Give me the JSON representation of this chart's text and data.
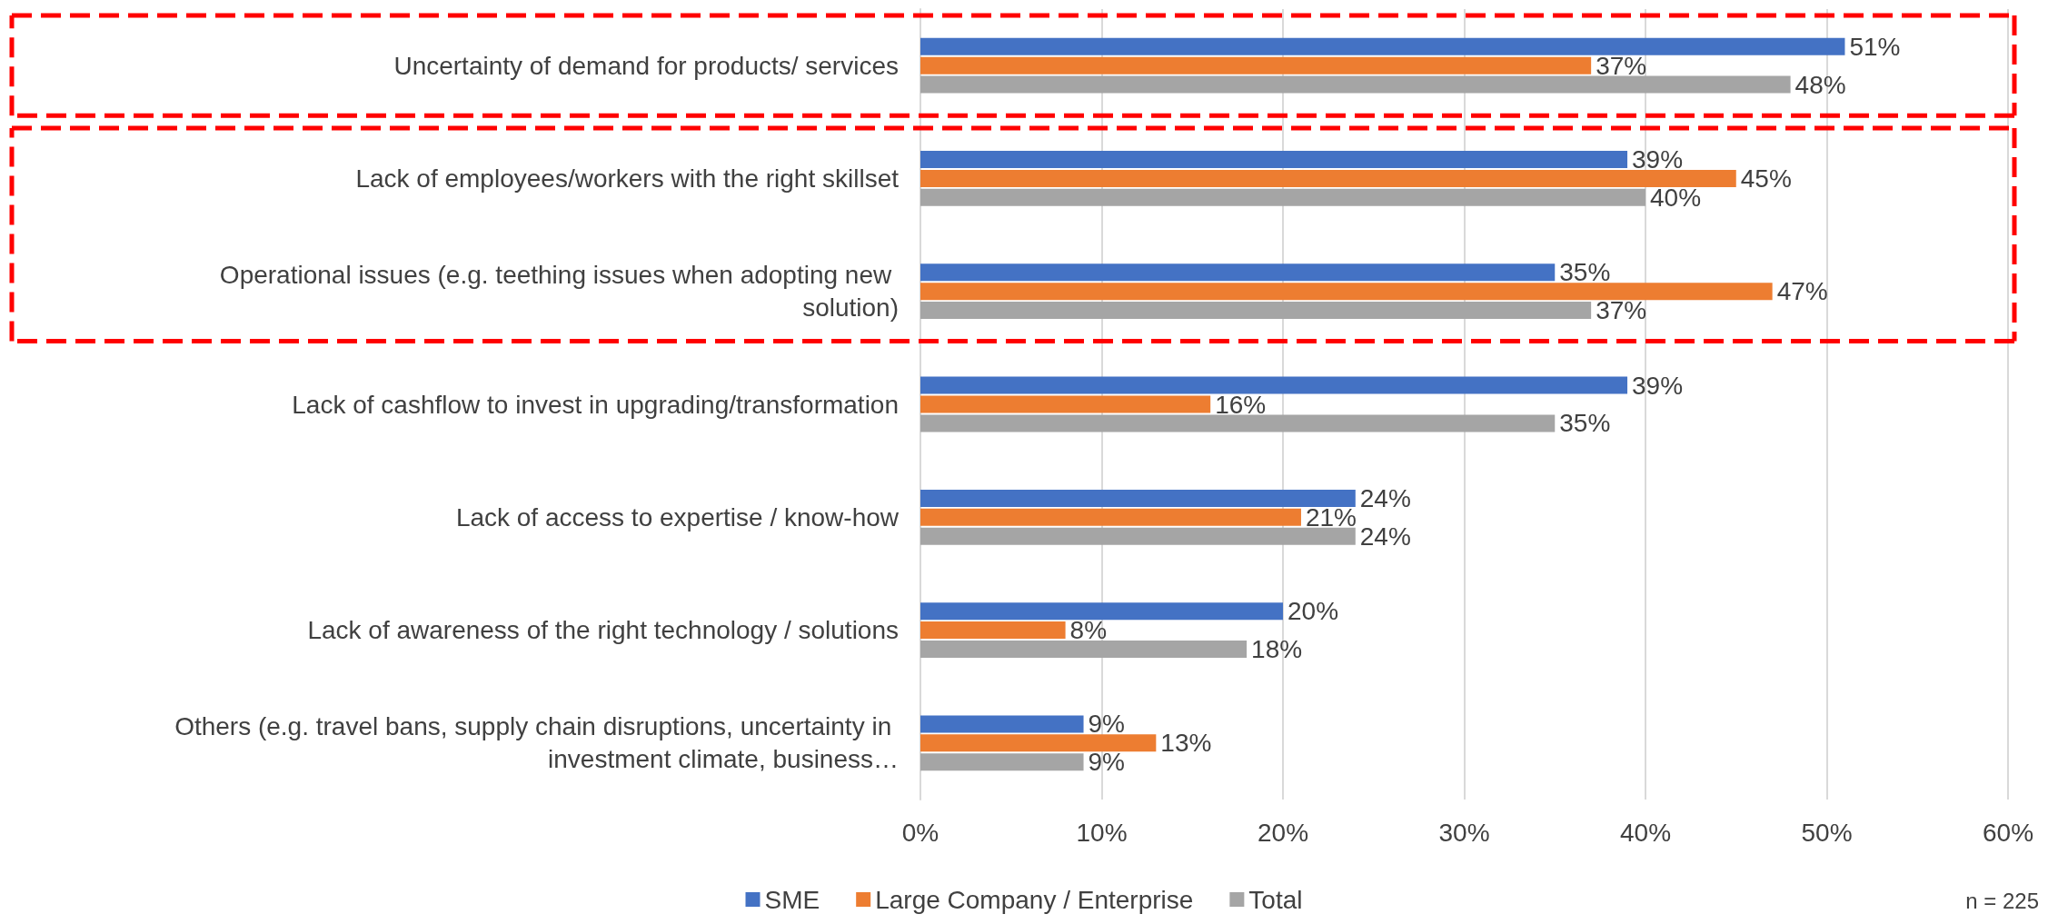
{
  "chart_data": {
    "type": "bar",
    "orientation": "horizontal",
    "categories": [
      "Uncertainty of demand for products/ services",
      "Lack of employees/workers with the right skillset",
      "Operational issues (e.g. teething issues when adopting new solution)",
      "Lack of cashflow to invest in upgrading/transformation",
      "Lack of access to expertise / know-how",
      "Lack of awareness of the right technology / solutions",
      "Others (e.g. travel bans, supply chain disruptions, uncertainty in investment climate, business…"
    ],
    "series": [
      {
        "name": "SME",
        "color": "#4472c4",
        "values": [
          51,
          39,
          35,
          39,
          24,
          20,
          9
        ],
        "value_labels": [
          "51%",
          "39%",
          "35%",
          "39%",
          "24%",
          "20%",
          "9%"
        ]
      },
      {
        "name": "Large Company / Enterprise",
        "color": "#ed7d31",
        "values": [
          37,
          45,
          47,
          16,
          21,
          8,
          13
        ],
        "value_labels": [
          "37%",
          "45%",
          "47%",
          "16%",
          "21%",
          "8%",
          "13%"
        ]
      },
      {
        "name": "Total",
        "color": "#a5a5a5",
        "values": [
          48,
          40,
          37,
          35,
          24,
          18,
          9
        ],
        "value_labels": [
          "48%",
          "40%",
          "37%",
          "35%",
          "24%",
          "18%",
          "9%"
        ]
      }
    ],
    "xlim": [
      0,
      60
    ],
    "xticks": [
      {
        "value": 0,
        "label": "0%"
      },
      {
        "value": 10,
        "label": "10%"
      },
      {
        "value": 20,
        "label": "20%"
      },
      {
        "value": 30,
        "label": "30%"
      },
      {
        "value": 40,
        "label": "40%"
      },
      {
        "value": 50,
        "label": "50%"
      },
      {
        "value": 60,
        "label": "60%"
      }
    ],
    "grid": "x",
    "legend": "bottom",
    "annotations": [
      "n = 225"
    ]
  }
}
